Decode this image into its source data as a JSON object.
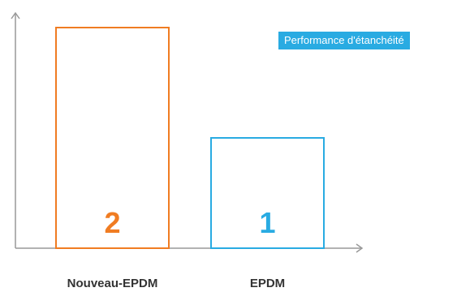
{
  "chart_data": {
    "type": "bar",
    "categories": [
      "Nouveau-EPDM",
      "EPDM"
    ],
    "values": [
      2,
      1
    ],
    "data_labels": [
      "2",
      "1"
    ],
    "legend": "Performance d'étanchéité",
    "legend_placement": "top-right",
    "ylim": [
      0,
      2.2
    ],
    "grid": false,
    "colors": [
      "#f07c22",
      "#29abe2"
    ],
    "legend_color": "#29abe2",
    "axis_color": "#999999"
  }
}
